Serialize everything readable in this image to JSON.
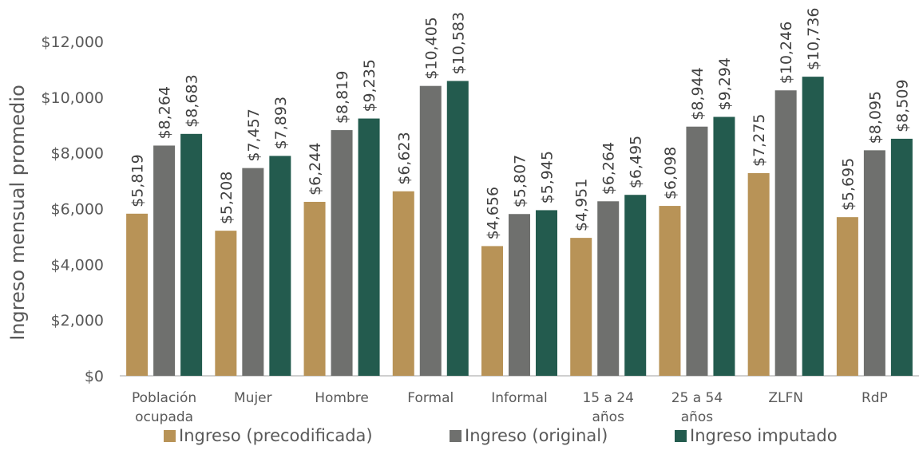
{
  "chart_data": {
    "type": "bar",
    "title": "",
    "xlabel": "",
    "ylabel": "Ingreso mensual promedio",
    "ylim": [
      0,
      12000
    ],
    "yticks": [
      "$0",
      "$2,000",
      "$4,000",
      "$6,000",
      "$8,000",
      "$10,000",
      "$12,000"
    ],
    "grid": false,
    "legend_position": "bottom",
    "categories": [
      [
        "Población",
        "ocupada"
      ],
      [
        "Mujer"
      ],
      [
        "Hombre"
      ],
      [
        "Formal"
      ],
      [
        "Informal"
      ],
      [
        "15 a 24",
        "años"
      ],
      [
        "25 a 54",
        "años"
      ],
      [
        "ZLFN"
      ],
      [
        "RdP"
      ]
    ],
    "series": [
      {
        "name": "Ingreso (precodificada)",
        "color": "#B89357",
        "values": [
          5819,
          5208,
          6244,
          6623,
          4656,
          4951,
          6098,
          7275,
          5695
        ],
        "labels": [
          "$5,819",
          "$5,208",
          "$6,244",
          "$6,623",
          "$4,656",
          "$4,951",
          "$6,098",
          "$7,275",
          "$5,695"
        ]
      },
      {
        "name": "Ingreso (original)",
        "color": "#6F706E",
        "values": [
          8264,
          7457,
          8819,
          10405,
          5807,
          6264,
          8944,
          10246,
          8095
        ],
        "labels": [
          "$8,264",
          "$7,457",
          "$8,819",
          "$10,405",
          "$5,807",
          "$6,264",
          "$8,944",
          "$10,246",
          "$8,095"
        ]
      },
      {
        "name": "Ingreso imputado",
        "color": "#235B4E",
        "values": [
          8683,
          7893,
          9235,
          10583,
          5945,
          6495,
          9294,
          10736,
          8509
        ],
        "labels": [
          "$8,683",
          "$7,893",
          "$9,235",
          "$10,583",
          "$5,945",
          "$6,495",
          "$9,294",
          "$10,736",
          "$8,509"
        ]
      }
    ]
  }
}
